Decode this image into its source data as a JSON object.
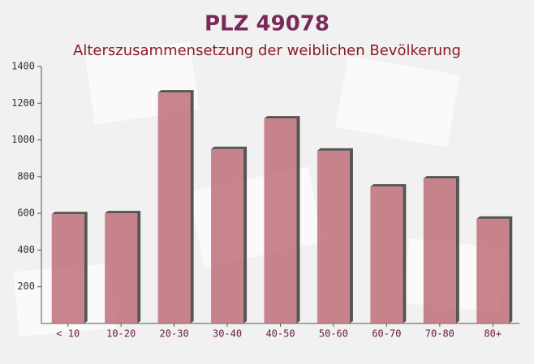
{
  "chart_data": {
    "type": "bar",
    "title": "PLZ 49078",
    "subtitle": "Alterszusammensetzung der weiblichen Bevölkerung",
    "categories": [
      "< 10",
      "10-20",
      "20-30",
      "30-40",
      "40-50",
      "50-60",
      "60-70",
      "70-80",
      "80+"
    ],
    "values": [
      595,
      600,
      1258,
      950,
      1117,
      941,
      746,
      790,
      570
    ],
    "color": "#c0707a",
    "ylim": [
      0,
      1400
    ],
    "yticks": [
      200,
      400,
      600,
      800,
      1000,
      1200,
      1400
    ]
  }
}
